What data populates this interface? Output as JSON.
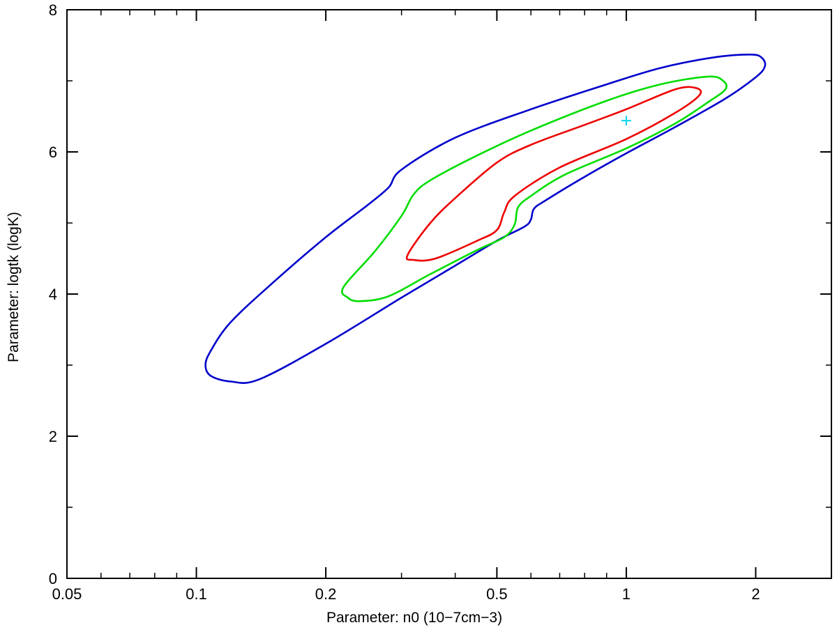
{
  "chart_data": {
    "type": "line",
    "title": "",
    "xlabel": "Parameter: n0 (10−7cm−3)",
    "ylabel": "Parameter: logtk (logK)",
    "xscale": "log",
    "xlim": [
      0.05,
      3.0
    ],
    "ylim": [
      0,
      8
    ],
    "xticks": [
      {
        "value": 0.05,
        "label": "0.05"
      },
      {
        "value": 0.1,
        "label": "0.1"
      },
      {
        "value": 0.2,
        "label": "0.2"
      },
      {
        "value": 0.5,
        "label": "0.5"
      },
      {
        "value": 1,
        "label": "1"
      },
      {
        "value": 2,
        "label": "2"
      }
    ],
    "yticks": [
      {
        "value": 0,
        "label": "0"
      },
      {
        "value": 2,
        "label": "2"
      },
      {
        "value": 4,
        "label": "4"
      },
      {
        "value": 6,
        "label": "6"
      },
      {
        "value": 8,
        "label": "8"
      }
    ],
    "grid": false,
    "best_fit": {
      "x": 1.0,
      "y": 6.44,
      "color": "#19d9ee",
      "marker": "+"
    },
    "series": [
      {
        "color": "#0000cc",
        "points": [
          [
            0.105,
            3.0
          ],
          [
            0.108,
            2.85
          ],
          [
            0.12,
            2.77
          ],
          [
            0.14,
            2.8
          ],
          [
            0.2,
            3.3
          ],
          [
            0.3,
            3.95
          ],
          [
            0.4,
            4.4
          ],
          [
            0.5,
            4.75
          ],
          [
            0.58,
            4.95
          ],
          [
            0.6,
            5.05
          ],
          [
            0.61,
            5.2
          ],
          [
            0.65,
            5.32
          ],
          [
            0.8,
            5.65
          ],
          [
            1.0,
            5.98
          ],
          [
            1.3,
            6.35
          ],
          [
            1.7,
            6.75
          ],
          [
            2.0,
            7.05
          ],
          [
            2.1,
            7.2
          ],
          [
            2.07,
            7.32
          ],
          [
            1.95,
            7.37
          ],
          [
            1.6,
            7.33
          ],
          [
            1.2,
            7.18
          ],
          [
            0.9,
            6.95
          ],
          [
            0.6,
            6.6
          ],
          [
            0.4,
            6.2
          ],
          [
            0.3,
            5.75
          ],
          [
            0.28,
            5.5
          ],
          [
            0.25,
            5.25
          ],
          [
            0.2,
            4.8
          ],
          [
            0.15,
            4.15
          ],
          [
            0.12,
            3.6
          ],
          [
            0.108,
            3.2
          ],
          [
            0.105,
            3.0
          ]
        ]
      },
      {
        "color": "#00dd00",
        "points": [
          [
            0.22,
            4.1
          ],
          [
            0.225,
            3.95
          ],
          [
            0.24,
            3.9
          ],
          [
            0.28,
            3.97
          ],
          [
            0.35,
            4.28
          ],
          [
            0.45,
            4.62
          ],
          [
            0.52,
            4.8
          ],
          [
            0.55,
            4.98
          ],
          [
            0.56,
            5.22
          ],
          [
            0.6,
            5.38
          ],
          [
            0.72,
            5.68
          ],
          [
            1.0,
            6.05
          ],
          [
            1.3,
            6.4
          ],
          [
            1.55,
            6.7
          ],
          [
            1.7,
            6.88
          ],
          [
            1.68,
            7.0
          ],
          [
            1.55,
            7.06
          ],
          [
            1.2,
            6.95
          ],
          [
            0.9,
            6.72
          ],
          [
            0.6,
            6.3
          ],
          [
            0.45,
            5.95
          ],
          [
            0.35,
            5.6
          ],
          [
            0.32,
            5.4
          ],
          [
            0.3,
            5.1
          ],
          [
            0.26,
            4.6
          ],
          [
            0.22,
            4.1
          ]
        ]
      },
      {
        "color": "#ee0000",
        "points": [
          [
            0.31,
            4.55
          ],
          [
            0.32,
            4.48
          ],
          [
            0.36,
            4.5
          ],
          [
            0.45,
            4.75
          ],
          [
            0.5,
            4.9
          ],
          [
            0.52,
            5.15
          ],
          [
            0.55,
            5.38
          ],
          [
            0.7,
            5.78
          ],
          [
            1.0,
            6.18
          ],
          [
            1.3,
            6.55
          ],
          [
            1.48,
            6.8
          ],
          [
            1.45,
            6.9
          ],
          [
            1.3,
            6.88
          ],
          [
            1.0,
            6.6
          ],
          [
            0.8,
            6.38
          ],
          [
            0.6,
            6.1
          ],
          [
            0.5,
            5.85
          ],
          [
            0.4,
            5.35
          ],
          [
            0.35,
            5.0
          ],
          [
            0.31,
            4.55
          ]
        ]
      }
    ]
  }
}
